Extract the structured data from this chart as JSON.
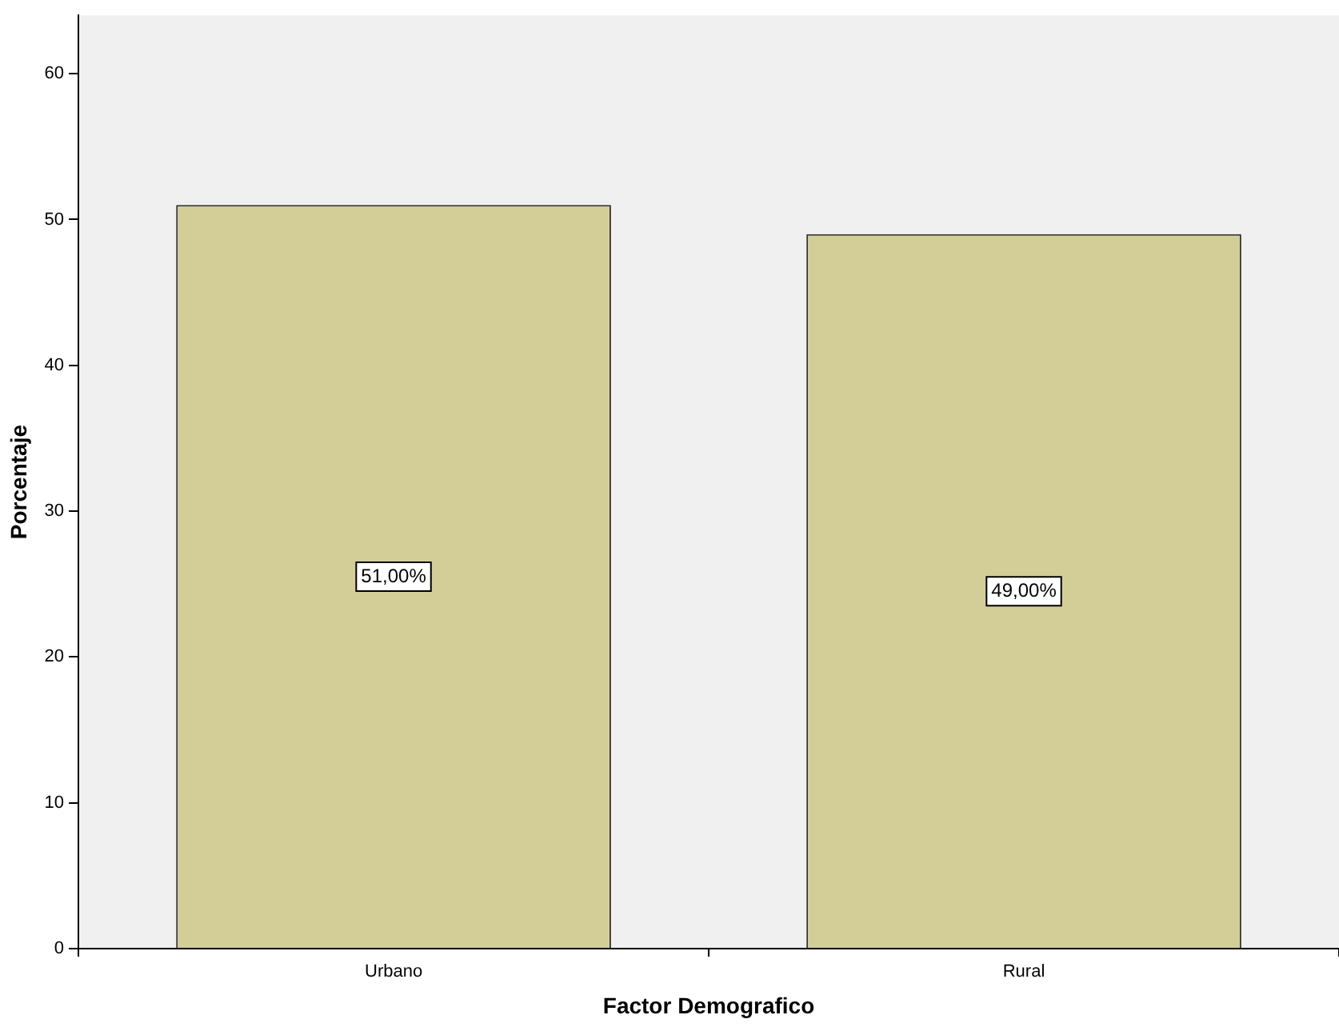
{
  "chart_data": {
    "type": "bar",
    "xlabel": "Factor Demografico",
    "ylabel": "Porcentaje",
    "categories": [
      "Urbano",
      "Rural"
    ],
    "values": [
      51,
      49
    ],
    "value_labels": [
      "51,00%",
      "49,00%"
    ],
    "color": "#d3ce97",
    "ylim": [
      0,
      64
    ],
    "yticks": [
      0,
      10,
      20,
      30,
      40,
      50,
      60
    ],
    "grid": false,
    "legend": false
  }
}
